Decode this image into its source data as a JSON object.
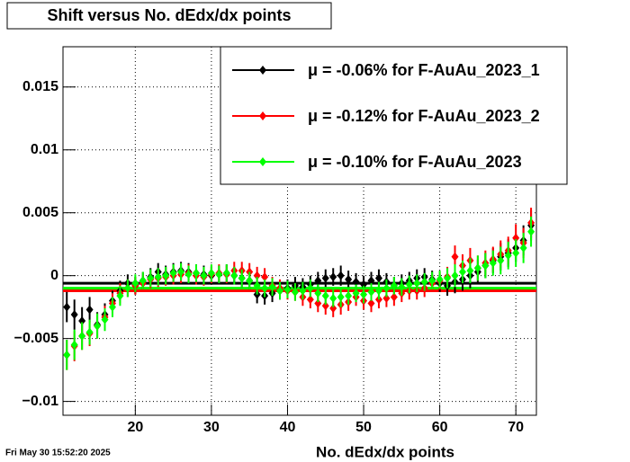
{
  "chart_data": {
    "type": "errorbar",
    "title": "Shift versus No. dEdx/dx points",
    "x_label": "No. dEdx/dx points",
    "timestamp": "Fri May 30 15:52:20 2025",
    "xlim": [
      10.5,
      72.7
    ],
    "xticks": [
      20,
      30,
      40,
      50,
      60,
      70
    ],
    "ylim": [
      -0.0111,
      0.0182
    ],
    "yticks": [
      {
        "value": -0.01,
        "label": "−0.01"
      },
      {
        "value": -0.005,
        "label": "−0.005"
      },
      0,
      0.005,
      0.01,
      0.015
    ],
    "grid": true,
    "legend": "top-right",
    "x": [
      11,
      12,
      13,
      14,
      15,
      16,
      17,
      18,
      19,
      20,
      21,
      22,
      23,
      24,
      25,
      26,
      27,
      28,
      29,
      30,
      31,
      32,
      33,
      34,
      35,
      36,
      37,
      38,
      39,
      40,
      41,
      42,
      43,
      44,
      45,
      46,
      47,
      48,
      49,
      50,
      51,
      52,
      53,
      54,
      55,
      56,
      57,
      58,
      59,
      60,
      61,
      62,
      63,
      64,
      65,
      66,
      67,
      68,
      69,
      70,
      71,
      72
    ],
    "series": [
      {
        "name": "μ = -0.06% for F-AuAu_2023_1",
        "color": "#000000",
        "mean": -0.0006,
        "values": [
          -0.0025,
          -0.0031,
          -0.0036,
          -0.0027,
          -0.0039,
          -0.0031,
          -0.002,
          -0.0012,
          -0.0006,
          -0.0008,
          -0.0004,
          -0.0001,
          0.0003,
          0.0001,
          0.0003,
          0.0004,
          0.0003,
          0.0002,
          0.0001,
          0,
          0.0001,
          0.0002,
          0,
          -0.0002,
          -0.0004,
          -0.0015,
          -0.0016,
          -0.0014,
          -0.0012,
          -0.001,
          -0.0008,
          -0.0009,
          -0.0007,
          -0.0004,
          -0.0002,
          -0.0001,
          0,
          -0.0003,
          -0.0005,
          -0.0007,
          -0.0004,
          -0.0002,
          -0.0005,
          -0.0008,
          -0.0006,
          -0.0004,
          -0.0002,
          -0.0001,
          -0.0003,
          -0.0006,
          -0.0008,
          -0.0005,
          -0.0003,
          0,
          0.0003,
          0.0008,
          0.0012,
          0.0015,
          0.0018,
          0.0022,
          0.0028,
          0.004
        ],
        "errors": [
          0.0012,
          0.0012,
          0.0011,
          0.001,
          0.001,
          0.0009,
          0.0008,
          0.0008,
          0.0007,
          0.0007,
          0.0007,
          0.0007,
          0.0007,
          0.0007,
          0.0007,
          0.0007,
          0.0007,
          0.0007,
          0.0007,
          0.0007,
          0.0007,
          0.0007,
          0.0007,
          0.0007,
          0.0007,
          0.0007,
          0.0007,
          0.0007,
          0.0007,
          0.0007,
          0.0007,
          0.0007,
          0.0007,
          0.0007,
          0.0007,
          0.0007,
          0.0008,
          0.0007,
          0.0007,
          0.0007,
          0.0007,
          0.0007,
          0.0007,
          0.0007,
          0.0007,
          0.0007,
          0.0007,
          0.0007,
          0.0007,
          0.0007,
          0.0008,
          0.0009,
          0.0009,
          0.001,
          0.001,
          0.001,
          0.001,
          0.0011,
          0.0011,
          0.0011,
          0.0012,
          0.0012
        ]
      },
      {
        "name": "μ = -0.12% for F-AuAu_2023_2",
        "color": "#ff0000",
        "mean": -0.0012,
        "values": [
          -0.0063,
          -0.0056,
          -0.0048,
          -0.0046,
          -0.004,
          -0.0033,
          -0.0022,
          -0.0014,
          -0.001,
          -0.0008,
          -0.0006,
          -0.0003,
          -0.0002,
          -0.0001,
          0,
          0.0001,
          0.0002,
          0,
          -0.0001,
          0.0001,
          0.0002,
          0.0001,
          0.0004,
          0.0004,
          0.0003,
          0,
          -0.0001,
          -0.0008,
          -0.001,
          -0.0012,
          -0.0013,
          -0.0017,
          -0.0019,
          -0.0022,
          -0.0024,
          -0.0026,
          -0.0023,
          -0.0021,
          -0.0017,
          -0.002,
          -0.0022,
          -0.0019,
          -0.0018,
          -0.0017,
          -0.0014,
          -0.0012,
          -0.0012,
          -0.001,
          -0.0006,
          -0.0004,
          -0.0001,
          0.0015,
          0.0008,
          0.0012,
          0.0006,
          0.001,
          0.0013,
          0.0017,
          0.002,
          0.003,
          0.0026,
          0.0042
        ],
        "errors": [
          0.0012,
          0.0012,
          0.0011,
          0.001,
          0.001,
          0.0009,
          0.0008,
          0.0008,
          0.0007,
          0.0007,
          0.0007,
          0.0007,
          0.0007,
          0.0007,
          0.0007,
          0.0007,
          0.0007,
          0.0007,
          0.0007,
          0.0007,
          0.0007,
          0.0007,
          0.0007,
          0.0007,
          0.0007,
          0.0007,
          0.0007,
          0.0007,
          0.0007,
          0.0007,
          0.0007,
          0.0007,
          0.0007,
          0.0007,
          0.0007,
          0.0007,
          0.0008,
          0.0007,
          0.0007,
          0.0007,
          0.0007,
          0.0007,
          0.0007,
          0.0007,
          0.0007,
          0.0007,
          0.0007,
          0.0007,
          0.0007,
          0.0007,
          0.0008,
          0.0009,
          0.0009,
          0.001,
          0.001,
          0.001,
          0.001,
          0.0011,
          0.0011,
          0.0011,
          0.0012,
          0.0012
        ]
      },
      {
        "name": "μ = -0.10% for F-AuAu_2023",
        "color": "#00ff00",
        "mean": -0.001,
        "values": [
          -0.0063,
          -0.0055,
          -0.0048,
          -0.0045,
          -0.004,
          -0.0035,
          -0.0025,
          -0.0016,
          -0.001,
          -0.0006,
          -0.0004,
          -0.0002,
          -0.0001,
          0,
          0.0002,
          0.0003,
          0.0001,
          0.0002,
          0,
          0.0002,
          0.0001,
          0.0002,
          0,
          -0.0002,
          -0.0004,
          -0.0008,
          -0.001,
          -0.0009,
          -0.0012,
          -0.0011,
          -0.0013,
          -0.0012,
          -0.001,
          -0.0014,
          -0.0016,
          -0.0018,
          -0.0017,
          -0.0016,
          -0.0014,
          -0.0015,
          -0.0013,
          -0.0012,
          -0.001,
          -0.0008,
          -0.0009,
          -0.0007,
          -0.0006,
          -0.0005,
          -0.0004,
          -0.0003,
          -0.0002,
          0,
          0.0003,
          0.0004,
          0.0006,
          0.0008,
          0.001,
          0.0012,
          0.0016,
          0.0018,
          0.0022,
          0.0035
        ],
        "errors": [
          0.0012,
          0.0012,
          0.0011,
          0.001,
          0.001,
          0.0009,
          0.0008,
          0.0008,
          0.0007,
          0.0007,
          0.0007,
          0.0007,
          0.0007,
          0.0007,
          0.0007,
          0.0007,
          0.0007,
          0.0007,
          0.0007,
          0.0007,
          0.0007,
          0.0007,
          0.0007,
          0.0007,
          0.0007,
          0.0007,
          0.0007,
          0.0007,
          0.0007,
          0.0007,
          0.0007,
          0.0007,
          0.0007,
          0.0007,
          0.0007,
          0.0007,
          0.0008,
          0.0007,
          0.0007,
          0.0007,
          0.0007,
          0.0007,
          0.0007,
          0.0007,
          0.0007,
          0.0007,
          0.0007,
          0.0007,
          0.0007,
          0.0007,
          0.0008,
          0.0009,
          0.0009,
          0.001,
          0.001,
          0.001,
          0.001,
          0.0011,
          0.0011,
          0.0011,
          0.0012,
          0.0012
        ]
      }
    ]
  }
}
